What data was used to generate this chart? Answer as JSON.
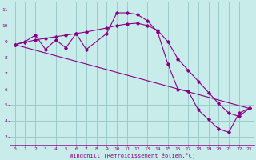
{
  "xlabel": "Windchill (Refroidissement éolien,°C)",
  "bg_color": "#c8ecea",
  "line_color": "#880088",
  "grid_color": "#99cccc",
  "xlim": [
    -0.5,
    23.5
  ],
  "ylim": [
    2.5,
    11.5
  ],
  "xticks": [
    0,
    1,
    2,
    3,
    4,
    5,
    6,
    7,
    8,
    9,
    10,
    11,
    12,
    13,
    14,
    15,
    16,
    17,
    18,
    19,
    20,
    21,
    22,
    23
  ],
  "yticks": [
    3,
    4,
    5,
    6,
    7,
    8,
    9,
    10,
    11
  ],
  "series1_x": [
    0,
    1,
    2,
    3,
    4,
    5,
    6,
    7,
    9,
    10,
    11,
    12,
    13,
    14,
    15,
    16,
    17,
    18,
    19,
    20,
    21,
    22,
    23
  ],
  "series1_y": [
    8.8,
    9.0,
    9.4,
    8.5,
    9.1,
    8.6,
    9.5,
    8.5,
    9.5,
    10.8,
    10.8,
    10.7,
    10.3,
    9.6,
    7.6,
    6.0,
    5.9,
    4.7,
    4.1,
    3.5,
    3.3,
    4.5,
    4.8
  ],
  "series2_x": [
    0,
    1,
    2,
    3,
    4,
    5,
    6,
    7,
    9,
    10,
    11,
    12,
    13,
    14,
    15,
    16,
    17,
    18,
    19,
    20,
    21,
    22,
    23
  ],
  "series2_y": [
    8.8,
    8.95,
    9.1,
    9.2,
    9.3,
    9.4,
    9.5,
    9.6,
    9.85,
    10.0,
    10.1,
    10.15,
    10.0,
    9.7,
    9.0,
    7.9,
    7.2,
    6.5,
    5.8,
    5.1,
    4.5,
    4.3,
    4.8
  ],
  "series3_x": [
    0,
    23
  ],
  "series3_y": [
    8.8,
    4.8
  ]
}
